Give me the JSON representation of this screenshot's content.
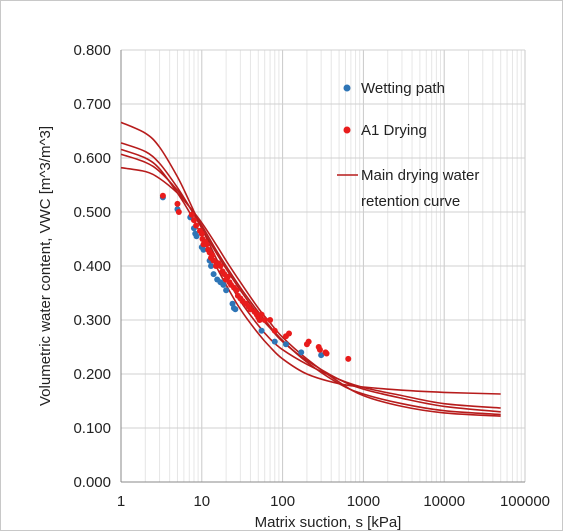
{
  "chart_data": {
    "type": "scatter",
    "title": "",
    "xlabel": "Matrix suction, s [kPa]",
    "ylabel": "Volumetric water content, VWC [m^3/m^3]",
    "x_scale": "log",
    "xlim": [
      1,
      100000
    ],
    "ylim": [
      0,
      0.8
    ],
    "x_ticks": [
      "1",
      "10",
      "100",
      "1000",
      "10000",
      "100000"
    ],
    "y_ticks": [
      "0.000",
      "0.100",
      "0.200",
      "0.300",
      "0.400",
      "0.500",
      "0.600",
      "0.700",
      "0.800"
    ],
    "grid": "major and minor vertical (log), major horizontal",
    "legend_position": "top-right inside plot",
    "series": [
      {
        "name": "Wetting path",
        "kind": "scatter",
        "color": "#2e75b6",
        "points": [
          [
            3.3,
            0.527
          ],
          [
            5.0,
            0.505
          ],
          [
            7.2,
            0.49
          ],
          [
            8.0,
            0.47
          ],
          [
            8.3,
            0.46
          ],
          [
            8.6,
            0.455
          ],
          [
            10.0,
            0.435
          ],
          [
            10.5,
            0.43
          ],
          [
            12.5,
            0.41
          ],
          [
            13.0,
            0.4
          ],
          [
            14.0,
            0.385
          ],
          [
            15.5,
            0.375
          ],
          [
            17.0,
            0.37
          ],
          [
            18.5,
            0.365
          ],
          [
            20.0,
            0.355
          ],
          [
            24.0,
            0.33
          ],
          [
            25.0,
            0.322
          ],
          [
            26.0,
            0.32
          ],
          [
            55.0,
            0.28
          ],
          [
            80.0,
            0.26
          ],
          [
            110.0,
            0.255
          ],
          [
            170.0,
            0.24
          ],
          [
            300.0,
            0.235
          ]
        ]
      },
      {
        "name": "A1 Drying",
        "kind": "scatter",
        "color": "#e81c1c",
        "points": [
          [
            3.3,
            0.53
          ],
          [
            5.0,
            0.515
          ],
          [
            5.2,
            0.5
          ],
          [
            7.5,
            0.495
          ],
          [
            8.0,
            0.485
          ],
          [
            8.5,
            0.475
          ],
          [
            9.5,
            0.465
          ],
          [
            10.0,
            0.46
          ],
          [
            10.2,
            0.45
          ],
          [
            10.5,
            0.44
          ],
          [
            11.0,
            0.445
          ],
          [
            11.5,
            0.44
          ],
          [
            12.0,
            0.43
          ],
          [
            12.5,
            0.425
          ],
          [
            13.0,
            0.415
          ],
          [
            13.5,
            0.42
          ],
          [
            14.0,
            0.41
          ],
          [
            15.0,
            0.4
          ],
          [
            16.0,
            0.405
          ],
          [
            17.0,
            0.4
          ],
          [
            18.0,
            0.39
          ],
          [
            19.0,
            0.385
          ],
          [
            20.0,
            0.375
          ],
          [
            21.0,
            0.38
          ],
          [
            22.0,
            0.37
          ],
          [
            23.0,
            0.365
          ],
          [
            25.0,
            0.36
          ],
          [
            27.0,
            0.355
          ],
          [
            28.0,
            0.345
          ],
          [
            30.0,
            0.34
          ],
          [
            32.0,
            0.335
          ],
          [
            35.0,
            0.33
          ],
          [
            38.0,
            0.325
          ],
          [
            40.0,
            0.32
          ],
          [
            45.0,
            0.315
          ],
          [
            48.0,
            0.31
          ],
          [
            50.0,
            0.305
          ],
          [
            52.0,
            0.3
          ],
          [
            55.0,
            0.31
          ],
          [
            60.0,
            0.3
          ],
          [
            70.0,
            0.3
          ],
          [
            80.0,
            0.28
          ],
          [
            110.0,
            0.27
          ],
          [
            120.0,
            0.275
          ],
          [
            200.0,
            0.255
          ],
          [
            210.0,
            0.26
          ],
          [
            280.0,
            0.25
          ],
          [
            290.0,
            0.245
          ],
          [
            340.0,
            0.24
          ],
          [
            350.0,
            0.238
          ],
          [
            650.0,
            0.228
          ]
        ]
      },
      {
        "name": "Main drying water retention curve",
        "kind": "line",
        "color": "#b71c1c",
        "curves": [
          {
            "x": [
              1,
              2,
              3,
              5,
              7,
              10,
              15,
              20,
              30,
              50,
              70,
              100,
              200,
              500,
              1000,
              3000,
              10000,
              50000
            ],
            "y": [
              0.666,
              0.646,
              0.62,
              0.565,
              0.52,
              0.47,
              0.415,
              0.38,
              0.335,
              0.29,
              0.265,
              0.245,
              0.218,
              0.19,
              0.175,
              0.16,
              0.145,
              0.137
            ]
          },
          {
            "x": [
              1,
              2,
              3,
              5,
              7,
              10,
              15,
              20,
              30,
              50,
              70,
              100,
              200,
              500,
              1000,
              3000,
              10000,
              50000
            ],
            "y": [
              0.628,
              0.612,
              0.59,
              0.545,
              0.51,
              0.47,
              0.425,
              0.395,
              0.355,
              0.31,
              0.285,
              0.26,
              0.225,
              0.19,
              0.172,
              0.155,
              0.14,
              0.13
            ]
          },
          {
            "x": [
              1,
              2,
              3,
              5,
              7,
              10,
              15,
              20,
              30,
              50,
              70,
              100,
              200,
              500,
              1000,
              3000,
              10000,
              50000
            ],
            "y": [
              0.616,
              0.6,
              0.58,
              0.535,
              0.5,
              0.455,
              0.4,
              0.365,
              0.32,
              0.275,
              0.25,
              0.228,
              0.2,
              0.182,
              0.176,
              0.17,
              0.166,
              0.163
            ]
          },
          {
            "x": [
              1,
              2,
              3,
              5,
              7,
              10,
              15,
              20,
              30,
              50,
              70,
              100,
              200,
              500,
              1000,
              3000,
              10000,
              50000
            ],
            "y": [
              0.607,
              0.592,
              0.575,
              0.54,
              0.51,
              0.475,
              0.43,
              0.4,
              0.36,
              0.315,
              0.288,
              0.262,
              0.222,
              0.182,
              0.163,
              0.145,
              0.132,
              0.125
            ]
          },
          {
            "x": [
              1,
              2,
              3,
              5,
              7,
              10,
              15,
              20,
              30,
              50,
              70,
              100,
              200,
              500,
              1000,
              3000,
              10000,
              50000
            ],
            "y": [
              0.582,
              0.575,
              0.562,
              0.535,
              0.51,
              0.48,
              0.44,
              0.41,
              0.37,
              0.322,
              0.295,
              0.268,
              0.228,
              0.185,
              0.16,
              0.14,
              0.128,
              0.122
            ]
          }
        ]
      }
    ],
    "legend": [
      {
        "label": "Wetting path",
        "marker": "dot",
        "color": "#2e75b6"
      },
      {
        "label": "A1 Drying",
        "marker": "dot",
        "color": "#e81c1c"
      },
      {
        "label_lines": [
          "Main drying water",
          "retention curve"
        ],
        "marker": "line",
        "color": "#b71c1c"
      }
    ]
  }
}
